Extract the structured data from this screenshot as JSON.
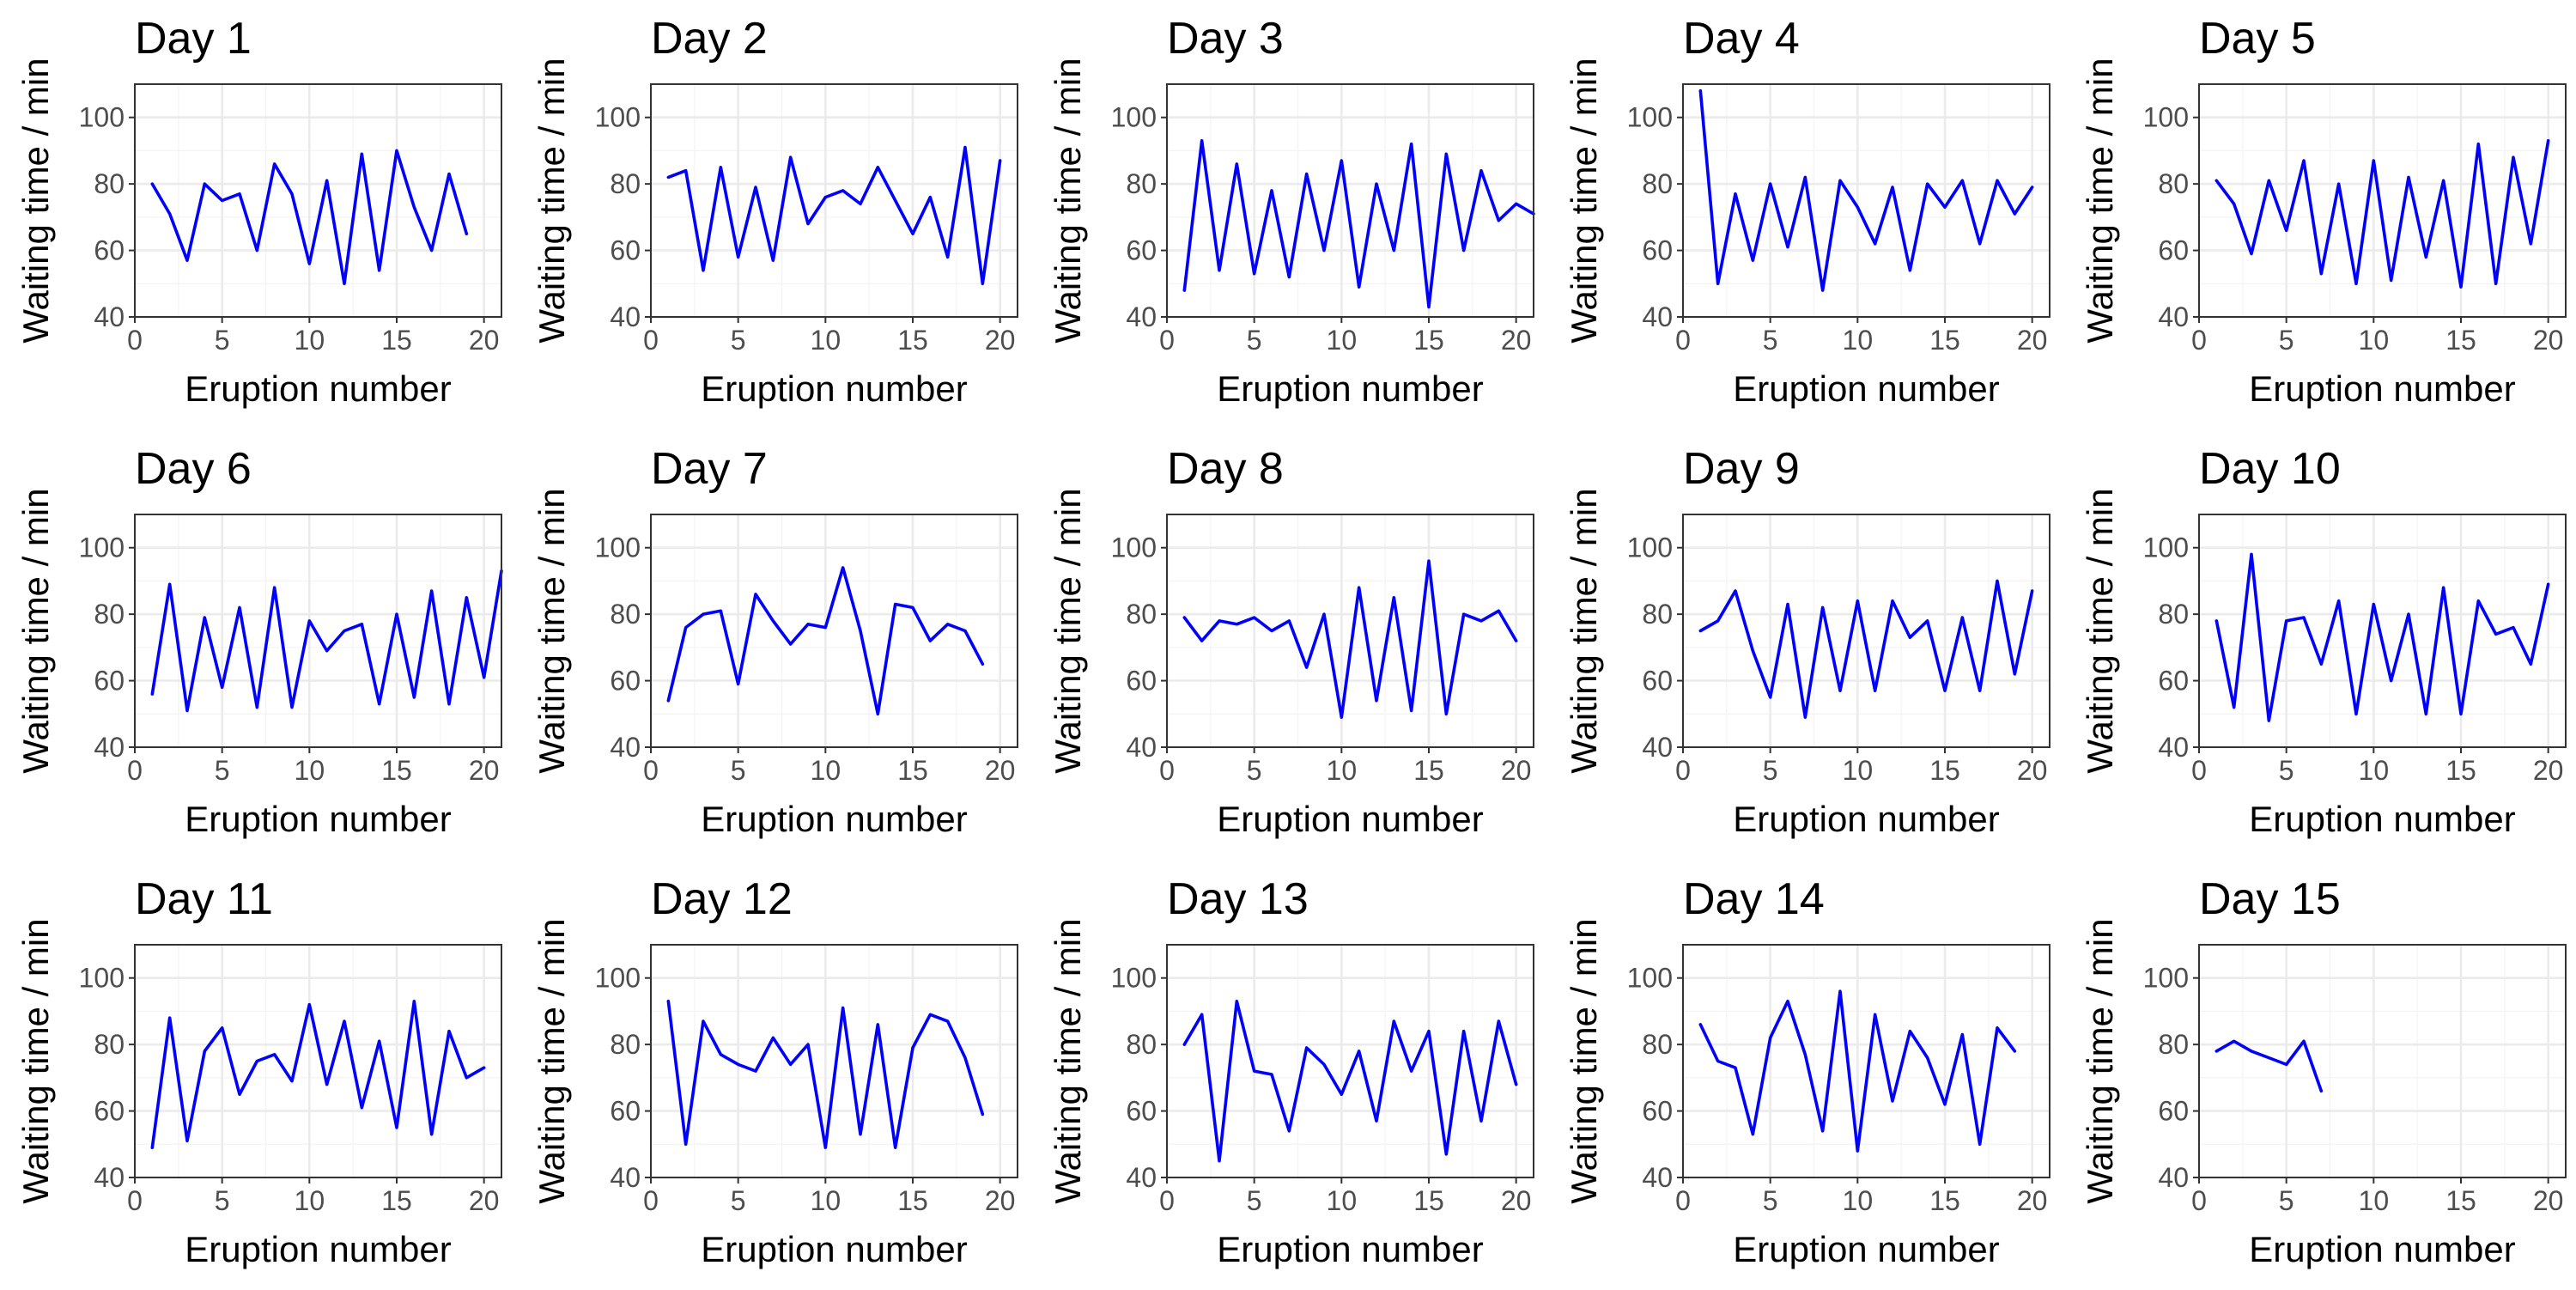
{
  "colors": {
    "line": "#0000ff",
    "panel_background": "#ffffff",
    "grid": "#ebebeb",
    "frame": "#333333"
  },
  "chart_data": {
    "type": "line",
    "layout": "facet grid, 3 rows x 5 columns",
    "xlabel": "Eruption number",
    "ylabel": "Waiting time / min",
    "xlim": [
      0,
      21
    ],
    "ylim": [
      40,
      110
    ],
    "xticks": [
      "0",
      "5",
      "10",
      "15",
      "20"
    ],
    "yticks": [
      "40",
      "60",
      "80",
      "100"
    ],
    "grid": true,
    "panels": [
      {
        "title": "Day 1",
        "values": [
          80,
          71,
          57,
          80,
          75,
          77,
          60,
          86,
          77,
          56,
          81,
          50,
          89,
          54,
          90,
          73,
          60,
          83,
          65
        ]
      },
      {
        "title": "Day 2",
        "values": [
          82,
          84,
          54,
          85,
          58,
          79,
          57,
          88,
          68,
          76,
          78,
          74,
          85,
          75,
          65,
          76,
          58,
          91,
          50,
          87
        ]
      },
      {
        "title": "Day 3",
        "values": [
          48,
          93,
          54,
          86,
          53,
          78,
          52,
          83,
          60,
          87,
          49,
          80,
          60,
          92,
          43,
          89,
          60,
          84,
          69,
          74,
          71
        ]
      },
      {
        "title": "Day 4",
        "values": [
          108,
          50,
          77,
          57,
          80,
          61,
          82,
          48,
          81,
          73,
          62,
          79,
          54,
          80,
          73,
          81,
          62,
          81,
          71,
          79
        ]
      },
      {
        "title": "Day 5",
        "values": [
          81,
          74,
          59,
          81,
          66,
          87,
          53,
          80,
          50,
          87,
          51,
          82,
          58,
          81,
          49,
          92,
          50,
          88,
          62,
          93
        ]
      },
      {
        "title": "Day 6",
        "values": [
          56,
          89,
          51,
          79,
          58,
          82,
          52,
          88,
          52,
          78,
          69,
          75,
          77,
          53,
          80,
          55,
          87,
          53,
          85,
          61,
          93
        ]
      },
      {
        "title": "Day 7",
        "values": [
          54,
          76,
          80,
          81,
          59,
          86,
          78,
          71,
          77,
          76,
          94,
          75,
          50,
          83,
          82,
          72,
          77,
          75,
          65
        ]
      },
      {
        "title": "Day 8",
        "values": [
          79,
          72,
          78,
          77,
          79,
          75,
          78,
          64,
          80,
          49,
          88,
          54,
          85,
          51,
          96,
          50,
          80,
          78,
          81,
          72
        ]
      },
      {
        "title": "Day 9",
        "values": [
          75,
          78,
          87,
          69,
          55,
          83,
          49,
          82,
          57,
          84,
          57,
          84,
          73,
          78,
          57,
          79,
          57,
          90,
          62,
          87
        ]
      },
      {
        "title": "Day 10",
        "values": [
          78,
          52,
          98,
          48,
          78,
          79,
          65,
          84,
          50,
          83,
          60,
          80,
          50,
          88,
          50,
          84,
          74,
          76,
          65,
          89
        ]
      },
      {
        "title": "Day 11",
        "values": [
          49,
          88,
          51,
          78,
          85,
          65,
          75,
          77,
          69,
          92,
          68,
          87,
          61,
          81,
          55,
          93,
          53,
          84,
          70,
          73
        ]
      },
      {
        "title": "Day 12",
        "values": [
          93,
          50,
          87,
          77,
          74,
          72,
          82,
          74,
          80,
          49,
          91,
          53,
          86,
          49,
          79,
          89,
          87,
          76,
          59
        ]
      },
      {
        "title": "Day 13",
        "values": [
          80,
          89,
          45,
          93,
          72,
          71,
          54,
          79,
          74,
          65,
          78,
          57,
          87,
          72,
          84,
          47,
          84,
          57,
          87,
          68
        ]
      },
      {
        "title": "Day 14",
        "values": [
          86,
          75,
          73,
          53,
          82,
          93,
          77,
          54,
          96,
          48,
          89,
          63,
          84,
          76,
          62,
          83,
          50,
          85,
          78
        ]
      },
      {
        "title": "Day 15",
        "values": [
          78,
          81,
          78,
          76,
          74,
          81,
          66
        ]
      }
    ]
  }
}
